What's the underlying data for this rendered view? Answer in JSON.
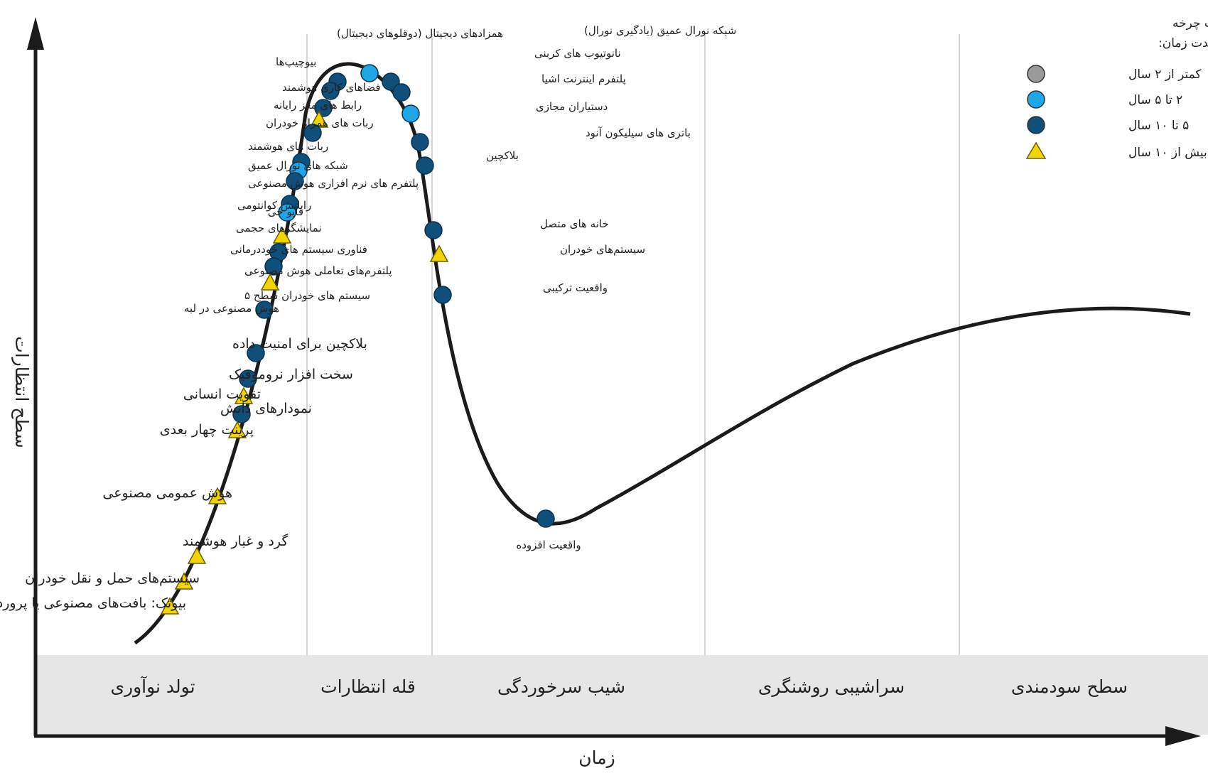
{
  "axes": {
    "y_label": "سطح انتظارات",
    "x_label": "زمان"
  },
  "phases": [
    "تولد نوآوری",
    "قله انتظارات",
    "شیب سرخوردگی",
    "سراشیبی روشنگری",
    "سطح سودمندی"
  ],
  "legend": {
    "title_line1": "گردآوری اطلاعات چرخه",
    "title_line2": "در مدت زمان:",
    "items": [
      {
        "label": "کمتر از ۲ سال",
        "shape": "circle",
        "color": "#9a9a9a"
      },
      {
        "label": "۲ تا ۵ سال",
        "shape": "circle",
        "color": "#1ea6e6"
      },
      {
        "label": "۵ تا ۱۰ سال",
        "shape": "circle",
        "color": "#0f4f7a"
      },
      {
        "label": "بیش از ۱۰ سال",
        "shape": "triangle",
        "color": "#f3d400"
      }
    ]
  },
  "colors": {
    "curve": "#1b1b1b",
    "band": "#e6e6e6",
    "axis": "#1b1b1b",
    "divider": "#d6d6d6"
  },
  "technologies": [
    {
      "label": "شبکه نورال عمیق (یادگیری نورال)",
      "category": "2-5"
    },
    {
      "label": "همزادهای دیجیتال (دوقلوهای دیجیتال)",
      "category": "5-10"
    },
    {
      "label": "نانوتیوب های کربنی",
      "category": "5-10"
    },
    {
      "label": "بیوچیپ‌ها",
      "category": "5-10"
    },
    {
      "label": "پلتفرم اینترنت اشیا",
      "category": "5-10"
    },
    {
      "label": "فضاهای کاری هوشمند",
      "category": "5-10"
    },
    {
      "label": "دستیاران مجازی",
      "category": "2-5"
    },
    {
      "label": "رابط های مغز رایانه",
      "category": ">10"
    },
    {
      "label": "ربات های همراه خودران",
      "category": "5-10"
    },
    {
      "label": "باتری های سیلیکون آنود",
      "category": "5-10"
    },
    {
      "label": "ربات های هوشمند",
      "category": "5-10"
    },
    {
      "label": "بلاکچین",
      "category": "5-10"
    },
    {
      "label": "شبکه های نورال عمیق",
      "category": "2-5"
    },
    {
      "label": "پلتفرم های نرم افزاری هوش مصنوعی",
      "category": "5-10"
    },
    {
      "label": "رایانش کوانتومی",
      "category": "5-10"
    },
    {
      "label": "فایو جی",
      "category": "2-5"
    },
    {
      "label": "نمایشگرهای حجمی",
      "category": ">10"
    },
    {
      "label": "خانه های متصل",
      "category": "5-10"
    },
    {
      "label": "فناوری سیستم های خوددرمانی",
      "category": "5-10"
    },
    {
      "label": "سیستم‌های خودران",
      "category": ">10"
    },
    {
      "label": "پلتفرم‌های تعاملی هوش مصنوعی",
      "category": "5-10"
    },
    {
      "label": "سیستم های خودران سطح ۵",
      "category": ">10"
    },
    {
      "label": "واقعیت ترکیبی",
      "category": "5-10"
    },
    {
      "label": "هوش مصنوعی در لبه",
      "category": "5-10"
    },
    {
      "label": "بلاکچین برای امنیت داده",
      "category": "5-10"
    },
    {
      "label": "سخت افزار نروموفیک",
      "category": "5-10"
    },
    {
      "label": "تقویت انسانی",
      "category": ">10"
    },
    {
      "label": "نمودارهای دانش",
      "category": "5-10"
    },
    {
      "label": "پرینت چهار بعدی",
      "category": ">10"
    },
    {
      "label": "هوش عمومی مصنوعی",
      "category": ">10"
    },
    {
      "label": "گرد و غبار هوشمند",
      "category": ">10"
    },
    {
      "label": "سیستم‌های حمل و نقل خودران",
      "category": ">10"
    },
    {
      "label": "بیوتک: بافت‌های مصنوعی یا پرورده",
      "category": ">10"
    },
    {
      "label": "واقعیت افزوده",
      "category": "5-10"
    }
  ]
}
